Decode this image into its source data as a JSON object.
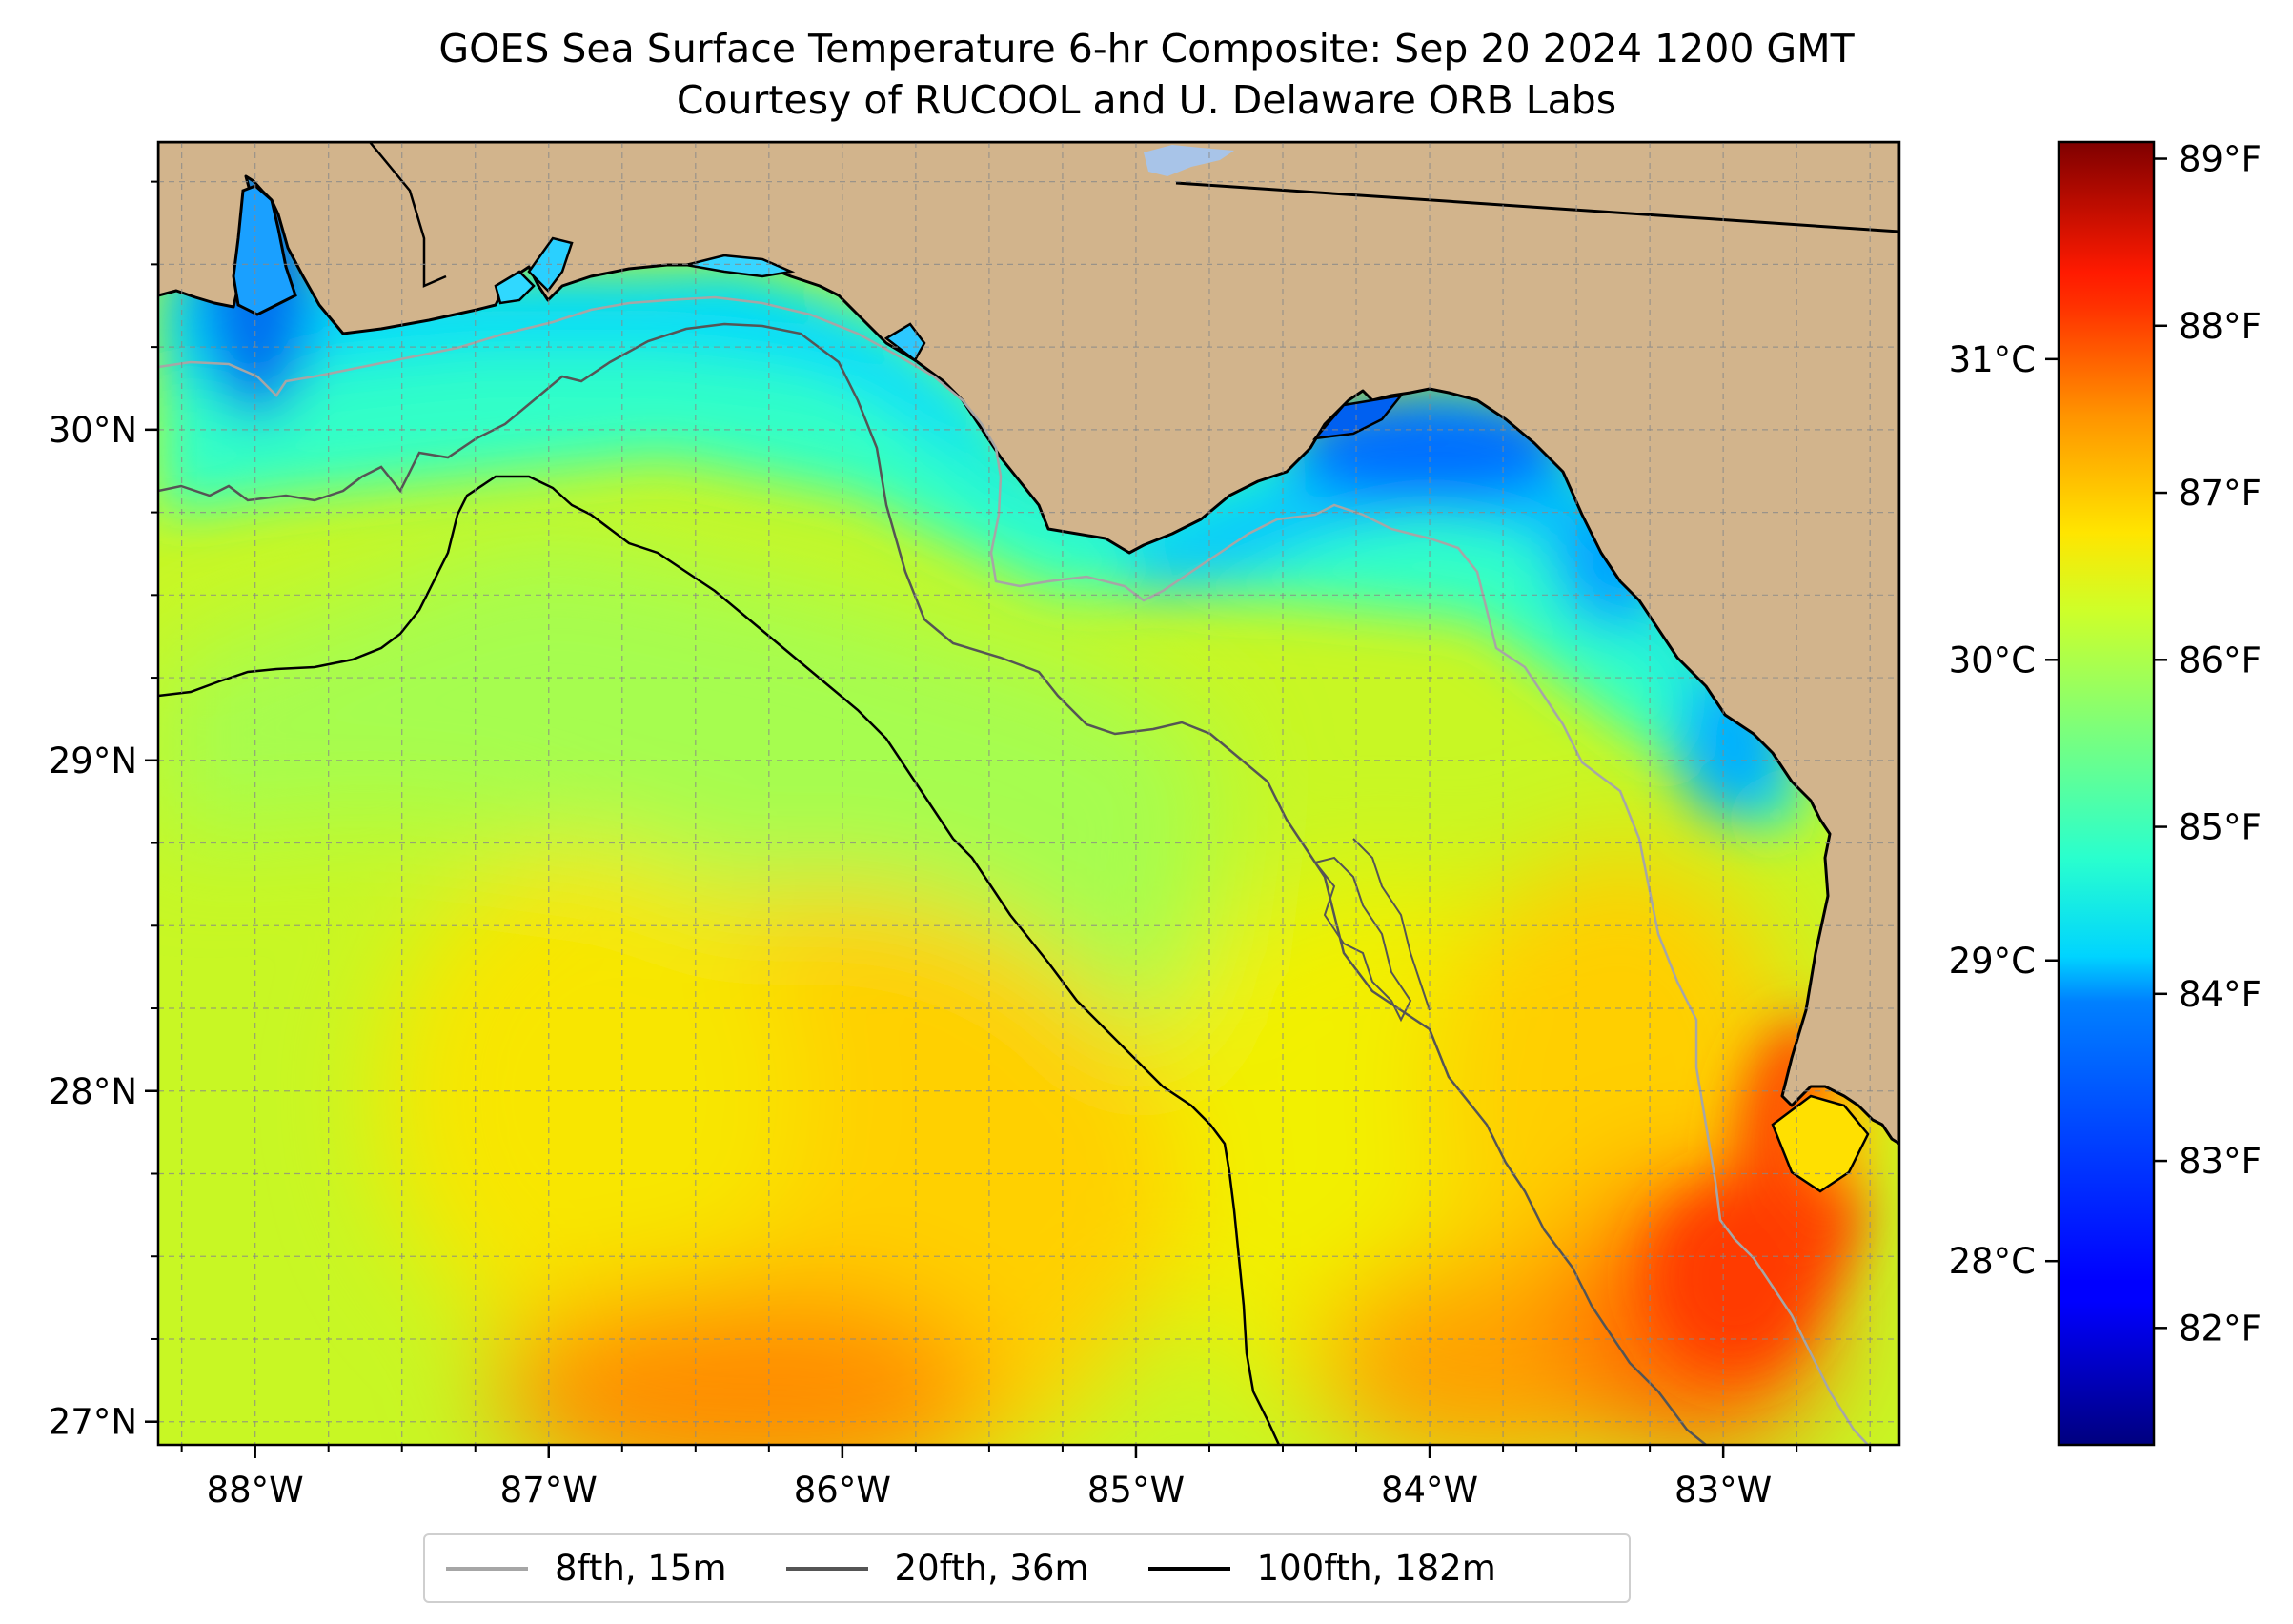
{
  "title": "GOES Sea Surface Temperature 6-hr Composite: Sep 20 2024 1200 GMT",
  "subtitle": "Courtesy of RUCOOL and U. Delaware ORB Labs",
  "map": {
    "lon_range": [
      -88.33,
      -82.4
    ],
    "lat_range": [
      26.93,
      30.87
    ],
    "lon_ticks": [
      "88°W",
      "87°W",
      "86°W",
      "85°W",
      "84°W",
      "83°W"
    ],
    "lon_tick_values": [
      -88,
      -87,
      -86,
      -85,
      -84,
      -83
    ],
    "lat_ticks": [
      "27°N",
      "28°N",
      "29°N",
      "30°N"
    ],
    "lat_tick_values": [
      27,
      28,
      29,
      30
    ],
    "minor_grid_step_deg": 0.25,
    "grid": true,
    "land_color": "#D2B48C"
  },
  "colorbar": {
    "colormap": "jet",
    "f_range": [
      81.3,
      89.1
    ],
    "f_ticks": [
      "82°F",
      "83°F",
      "84°F",
      "85°F",
      "86°F",
      "87°F",
      "88°F",
      "89°F"
    ],
    "f_tick_values": [
      82,
      83,
      84,
      85,
      86,
      87,
      88,
      89
    ],
    "c_ticks": [
      "28°C",
      "29°C",
      "30°C",
      "31°C"
    ],
    "c_tick_values": [
      28,
      29,
      30,
      31
    ]
  },
  "legend": {
    "position": "bottom-center",
    "items": [
      {
        "label": "8fth, 15m",
        "color": "#a6a6a6"
      },
      {
        "label": "20fth, 36m",
        "color": "#555555"
      },
      {
        "label": "100fth, 182m",
        "color": "#000000"
      }
    ]
  }
}
